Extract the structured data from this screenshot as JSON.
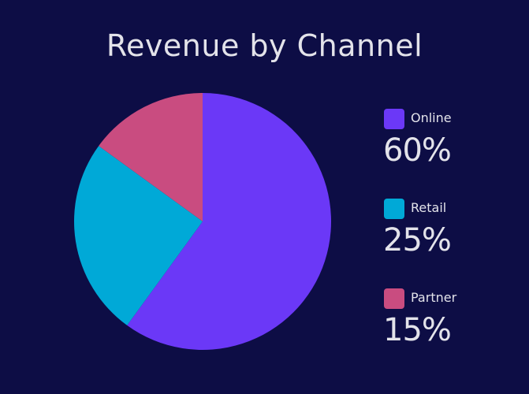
{
  "chart_data": {
    "type": "pie",
    "title": "Revenue by Channel",
    "slices": [
      {
        "label": "Online",
        "value": 60,
        "display": "60%",
        "color": "#6b38f7"
      },
      {
        "label": "Retail",
        "value": 25,
        "display": "25%",
        "color": "#00a9d7"
      },
      {
        "label": "Partner",
        "value": 15,
        "display": "15%",
        "color": "#c94c80"
      }
    ],
    "legend_position": "right",
    "background_color": "#0d0d45"
  }
}
